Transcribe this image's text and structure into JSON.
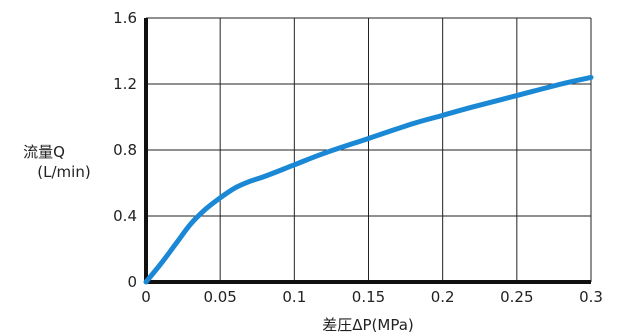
{
  "chart_data": {
    "type": "line",
    "title": "",
    "xlabel": "差圧ΔP(MPa)",
    "ylabel": "流量Q",
    "ylabel_unit": "(L/min)",
    "xlim": [
      0,
      0.3
    ],
    "ylim": [
      0,
      1.6
    ],
    "x_ticks": [
      "0",
      "0.05",
      "0.1",
      "0.15",
      "0.2",
      "0.25",
      "0.3"
    ],
    "y_ticks": [
      "0",
      "0.4",
      "0.8",
      "1.2",
      "1.6"
    ],
    "grid": true,
    "series": [
      {
        "color": "#1a88d4",
        "x": [
          0,
          0.01,
          0.02,
          0.03,
          0.04,
          0.05,
          0.06,
          0.07,
          0.08,
          0.1,
          0.12,
          0.15,
          0.18,
          0.2,
          0.22,
          0.25,
          0.28,
          0.3
        ],
        "y": [
          0,
          0.11,
          0.23,
          0.35,
          0.44,
          0.51,
          0.57,
          0.61,
          0.64,
          0.71,
          0.78,
          0.87,
          0.96,
          1.01,
          1.06,
          1.13,
          1.2,
          1.24
        ]
      }
    ]
  }
}
